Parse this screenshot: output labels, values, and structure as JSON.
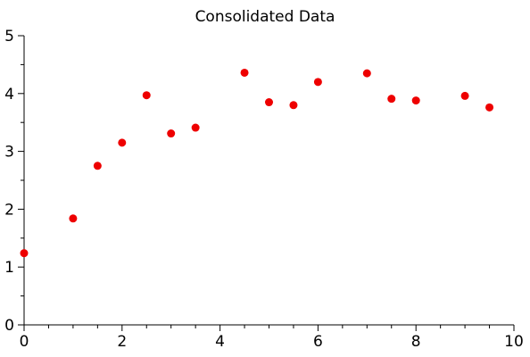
{
  "chart_data": {
    "type": "scatter",
    "title": "Consolidated Data",
    "xlabel": "",
    "ylabel": "",
    "xlim": [
      0,
      10
    ],
    "ylim": [
      0,
      5
    ],
    "x_ticks": [
      0,
      2,
      4,
      6,
      8,
      10
    ],
    "y_ticks": [
      0,
      1,
      2,
      3,
      4,
      5
    ],
    "x_minor_step": 0.5,
    "y_minor_step": 0.5,
    "grid": false,
    "marker_color": "#ee0000",
    "series": [
      {
        "x": [
          0,
          1,
          1.5,
          2,
          2.5,
          3,
          3.5,
          4.5,
          5,
          5.5,
          6,
          7,
          7.5,
          8,
          9,
          9.5
        ],
        "y": [
          1.24,
          1.84,
          2.75,
          3.15,
          3.97,
          3.31,
          3.41,
          4.36,
          3.85,
          3.8,
          4.2,
          4.35,
          3.91,
          3.88,
          3.96,
          3.76
        ]
      }
    ]
  }
}
